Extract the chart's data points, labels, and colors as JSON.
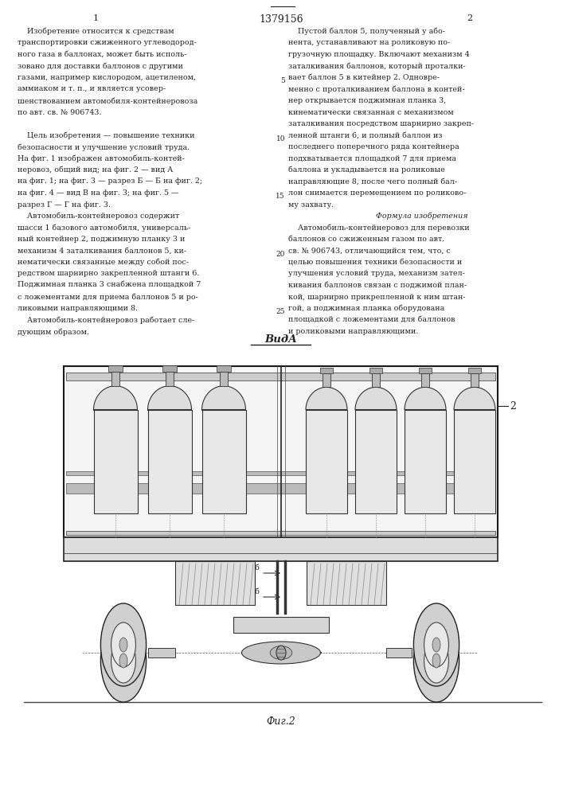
{
  "patent_number": "1379156",
  "page_left": "1",
  "page_right": "2",
  "bg_color": "#ffffff",
  "text_color": "#222222",
  "left_col_text": [
    "    Изобретение относится к средствам",
    "транспортировки сжиженного углеводород-",
    "ного газа в баллонах, может быть исполь-",
    "зовано для доставки баллонов с другими",
    "газами, например кислородом, ацетиленом,",
    "аммиаком и т. п., и является усовер-",
    "шенствованием автомобиля-контейнеровоза",
    "по авт. св. № 906743.",
    "",
    "    Цель изобретения — повышение техники",
    "безопасности и улучшение условий труда.",
    "На фиг. 1 изображен автомобиль-контей-",
    "неровоз, общий вид; на фиг. 2 — вид А",
    "на фиг. 1; на фиг. 3 — разрез Б — Б на фиг. 2;",
    "на фиг. 4 — вид В на фиг. 3; на фиг. 5 —",
    "разрез Г — Г на фиг. 3.",
    "    Автомобиль-контейнеровоз содержит",
    "шасси 1 базового автомобиля, универсаль-",
    "ный контейнер 2, поджимную планку 3 и",
    "механизм 4 заталкивания баллонов 5, ки-",
    "нематически связанные между собой пос-",
    "редством шарнирно закрепленной штанги 6.",
    "Поджимная планка 3 снабжена площадкой 7",
    "с ложементами для приема баллонов 5 и ро-",
    "ликовыми направляющими 8.",
    "    Автомобиль-контейнеровоз работает сле-",
    "дующим образом."
  ],
  "right_col_text": [
    "    Пустой баллон 5, полученный у або-",
    "нента, устанавливают на роликовую по-",
    "грузочную площадку. Включают механизм 4",
    "заталкивания баллонов, который проталки-",
    "вает баллон 5 в китейнер 2. Одновре-",
    "менно с проталкиванием баллона в контей-",
    "нер открывается поджимная планка 3,",
    "кинематически связанная с механизмом",
    "заталкивания посредством шарнирно закреп-",
    "ленной штанги 6, и полный баллон из",
    "последнего поперечного ряда контейнера",
    "подхватывается площадкой 7 для приема",
    "баллона и укладывается на роликовые",
    "направляющие 8, после чего полный бал-",
    "лон снимается перемещением по роликово-",
    "му захвату.",
    "Формула изобретения",
    "    Автомобиль-контейнеровоз для перевозки",
    "баллонов со сжиженным газом по авт.",
    "св. № 906743, отличающийся тем, что, с",
    "целью повышения техники безопасности и",
    "улучшения условий труда, механизм зател-",
    "кивания баллонов связан с поджимой план-",
    "кой, шарнирно прикрепленной к ним штан-",
    "гой, а поджимная планка оборудована",
    "площадкой с ложементами для баллонов",
    "и роликовыми направляющими."
  ],
  "line_number_rows": {
    "4": 5,
    "9": 10,
    "14": 15,
    "19": 20,
    "24": 25
  },
  "formula_row": 16
}
